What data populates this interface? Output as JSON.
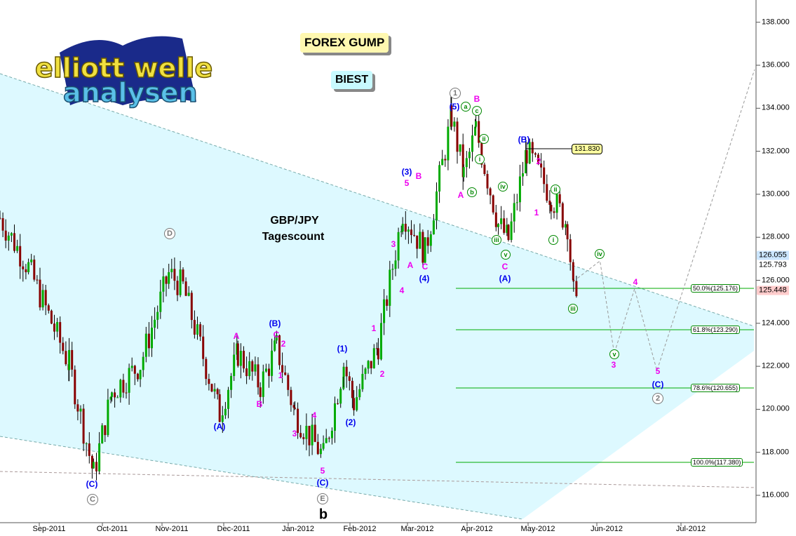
{
  "header": {
    "title": "FOREX GUMP",
    "subtitle": "BIEST",
    "logo_text": "elliott wellen analysen"
  },
  "chart_data": {
    "type": "candlestick",
    "instrument": "GBP/JPY",
    "caption": "Tagescount",
    "ylim": [
      115,
      139
    ],
    "y_ticks": [
      "116.000",
      "118.000",
      "120.000",
      "122.000",
      "124.000",
      "126.000",
      "128.000",
      "130.000",
      "132.000",
      "134.000",
      "136.000",
      "138.000"
    ],
    "x_ticks": [
      "Sep-2011",
      "Oct-2011",
      "Nov-2011",
      "Dec-2011",
      "Jan-2012",
      "Feb-2012",
      "Mar-2012",
      "Apr-2012",
      "May-2012",
      "Jun-2012",
      "Jul-2012"
    ],
    "price_path": [
      [
        "2011-08-08",
        128.9
      ],
      [
        "2011-08-22",
        126.6
      ],
      [
        "2011-09-11",
        122.1
      ],
      [
        "2011-09-23",
        117.0
      ],
      [
        "2011-10-02",
        120.8
      ],
      [
        "2011-10-16",
        122.1
      ],
      [
        "2011-10-30",
        126.3
      ],
      [
        "2011-11-06",
        125.7
      ],
      [
        "2011-11-24",
        119.8
      ],
      [
        "2011-12-03",
        122.6
      ],
      [
        "2011-12-14",
        121.1
      ],
      [
        "2011-12-22",
        122.9
      ],
      [
        "2011-12-31",
        119.8
      ],
      [
        "2012-01-14",
        117.8
      ],
      [
        "2012-01-24",
        122.1
      ],
      [
        "2012-01-29",
        120.3
      ],
      [
        "2012-02-10",
        123.0
      ],
      [
        "2012-02-22",
        129.2
      ],
      [
        "2012-03-04",
        127.3
      ],
      [
        "2012-03-17",
        133.6
      ],
      [
        "2012-03-23",
        130.9
      ],
      [
        "2012-03-29",
        133.0
      ],
      [
        "2012-04-09",
        128.6
      ],
      [
        "2012-04-14",
        127.9
      ],
      [
        "2012-04-23",
        132.0
      ],
      [
        "2012-05-05",
        129.9
      ],
      [
        "2012-05-13",
        128.6
      ],
      [
        "2012-05-16",
        125.3
      ],
      [
        "2012-05-18",
        126.1
      ]
    ],
    "projection": [
      [
        "2012-05-18",
        126.1
      ],
      [
        "2012-05-29",
        126.9
      ],
      [
        "2012-06-05",
        122.6
      ],
      [
        "2012-06-15",
        125.6
      ],
      [
        "2012-06-26",
        121.8
      ],
      [
        "2012-08-13",
        135.8
      ]
    ],
    "fibonacci": [
      {
        "label": "50.0%(125.176)",
        "value": 125.176
      },
      {
        "label": "61.8%(123.290)",
        "value": 123.29
      },
      {
        "label": "78.6%(120.655)",
        "value": 120.655
      },
      {
        "label": "100.0%(117.380)",
        "value": 117.38
      }
    ],
    "high_marker": "131.830",
    "price_tags": [
      {
        "text": "126.055",
        "color": "#cce6ff"
      },
      {
        "text": "125.793",
        "color": "#ffffff"
      },
      {
        "text": "125.448",
        "color": "#ffcccc"
      }
    ],
    "annotations": [
      {
        "text": "1",
        "style": "gray"
      },
      {
        "text": "D",
        "style": "gray"
      },
      {
        "text": "C",
        "style": "gray"
      },
      {
        "text": "E",
        "style": "gray"
      },
      {
        "text": "2",
        "style": "gray"
      },
      {
        "text": "(C)",
        "style": "blue"
      },
      {
        "text": "(A)",
        "style": "blue"
      },
      {
        "text": "(B)",
        "style": "blue"
      },
      {
        "text": "(1)",
        "style": "blue"
      },
      {
        "text": "(2)",
        "style": "blue"
      },
      {
        "text": "(C)",
        "style": "blue"
      },
      {
        "text": "(3)",
        "style": "blue"
      },
      {
        "text": "(4)",
        "style": "blue"
      },
      {
        "text": "(5)",
        "style": "blue"
      },
      {
        "text": "(A)",
        "style": "blue"
      },
      {
        "text": "(B)",
        "style": "blue"
      },
      {
        "text": "(C)",
        "style": "blue"
      },
      {
        "text": "A",
        "style": "mag"
      },
      {
        "text": "C",
        "style": "mag"
      },
      {
        "text": "2",
        "style": "mag"
      },
      {
        "text": "1",
        "style": "mag"
      },
      {
        "text": "B",
        "style": "mag"
      },
      {
        "text": "4",
        "style": "mag"
      },
      {
        "text": "3",
        "style": "mag"
      },
      {
        "text": "5",
        "style": "mag"
      },
      {
        "text": "1",
        "style": "mag"
      },
      {
        "text": "2",
        "style": "mag"
      },
      {
        "text": "3",
        "style": "mag"
      },
      {
        "text": "4",
        "style": "mag"
      },
      {
        "text": "5",
        "style": "mag"
      },
      {
        "text": "B",
        "style": "mag"
      },
      {
        "text": "A",
        "style": "mag"
      },
      {
        "text": "C",
        "style": "mag"
      },
      {
        "text": "A",
        "style": "mag"
      },
      {
        "text": "B",
        "style": "mag"
      },
      {
        "text": "C",
        "style": "mag"
      },
      {
        "text": "2",
        "style": "mag"
      },
      {
        "text": "1",
        "style": "mag"
      },
      {
        "text": "4",
        "style": "mag"
      },
      {
        "text": "3",
        "style": "mag"
      },
      {
        "text": "5",
        "style": "mag"
      },
      {
        "text": "a",
        "style": "grn"
      },
      {
        "text": "c",
        "style": "grn"
      },
      {
        "text": "ii",
        "style": "grn"
      },
      {
        "text": "i",
        "style": "grn"
      },
      {
        "text": "b",
        "style": "grn"
      },
      {
        "text": "iv",
        "style": "grn"
      },
      {
        "text": "iii",
        "style": "grn"
      },
      {
        "text": "v",
        "style": "grn"
      },
      {
        "text": "ii",
        "style": "grn"
      },
      {
        "text": "i",
        "style": "grn"
      },
      {
        "text": "iv",
        "style": "grn"
      },
      {
        "text": "iii",
        "style": "grn"
      },
      {
        "text": "v",
        "style": "grn"
      },
      {
        "text": "b",
        "style": "blk"
      }
    ],
    "colors": {
      "up": "#00aa00",
      "down": "#880000",
      "channel": "#ccf6ff",
      "fib": "#00aa00",
      "projection": "#999999"
    }
  }
}
